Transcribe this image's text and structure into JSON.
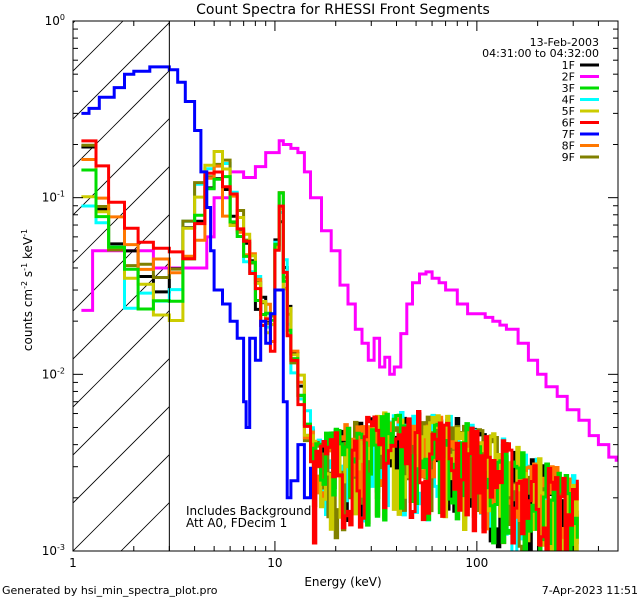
{
  "chart_data": {
    "type": "line",
    "title": "Count Spectra for RHESSI Front Segments",
    "xlabel": "Energy (keV)",
    "ylabel_parts": {
      "base": "counts cm",
      "exp1": "-2",
      "mid1": " s",
      "exp2": "-1",
      "mid2": " keV",
      "exp3": "-1"
    },
    "x_scale": "log",
    "y_scale": "log",
    "xlim": [
      1,
      500
    ],
    "ylim": [
      0.001,
      1
    ],
    "x_ticks": [
      {
        "value": 1,
        "label": "1"
      },
      {
        "value": 10,
        "label": "10"
      },
      {
        "value": 100,
        "label": "100"
      }
    ],
    "y_ticks": [
      {
        "value": 0.001,
        "base": "10",
        "exp": "-3"
      },
      {
        "value": 0.01,
        "base": "10",
        "exp": "-2"
      },
      {
        "value": 0.1,
        "base": "10",
        "exp": "-1"
      },
      {
        "value": 1,
        "base": "10",
        "exp": "0"
      }
    ],
    "date_label": "13-Feb-2003",
    "time_label": "04:31:00 to 04:32:00",
    "annotations": [
      "Includes Background",
      "Att A0, FDecim 1"
    ],
    "shaded_region": {
      "x_start": 1,
      "x_end": 3
    },
    "legend_position": "top-right",
    "series": [
      {
        "name": "1F",
        "color": "#000000"
      },
      {
        "name": "2F",
        "color": "#ff00ff"
      },
      {
        "name": "3F",
        "color": "#00dd00"
      },
      {
        "name": "4F",
        "color": "#00ffff"
      },
      {
        "name": "5F",
        "color": "#cccc00"
      },
      {
        "name": "6F",
        "color": "#ff0000"
      },
      {
        "name": "7F",
        "color": "#0000ff"
      },
      {
        "name": "8F",
        "color": "#ff7700"
      },
      {
        "name": "9F",
        "color": "#808000"
      }
    ],
    "series_2F_points": [
      [
        1.1,
        0.023
      ],
      [
        1.2,
        0.023
      ],
      [
        1.25,
        0.05
      ],
      [
        2.4,
        0.05
      ],
      [
        2.5,
        0.04
      ],
      [
        3,
        0.04
      ],
      [
        4,
        0.04
      ],
      [
        4.6,
        0.06
      ],
      [
        5,
        0.1
      ],
      [
        6,
        0.14
      ],
      [
        7,
        0.13
      ],
      [
        8,
        0.15
      ],
      [
        9,
        0.18
      ],
      [
        10,
        0.18
      ],
      [
        10.5,
        0.21
      ],
      [
        11,
        0.2
      ],
      [
        12,
        0.19
      ],
      [
        13,
        0.18
      ],
      [
        14,
        0.14
      ],
      [
        15,
        0.1
      ],
      [
        17,
        0.065
      ],
      [
        19,
        0.05
      ],
      [
        21,
        0.032
      ],
      [
        23,
        0.025
      ],
      [
        25,
        0.018
      ],
      [
        27,
        0.015
      ],
      [
        29,
        0.012
      ],
      [
        31,
        0.016
      ],
      [
        33,
        0.011
      ],
      [
        35,
        0.0125
      ],
      [
        37,
        0.01
      ],
      [
        39,
        0.011
      ],
      [
        42,
        0.017
      ],
      [
        45,
        0.025
      ],
      [
        48,
        0.033
      ],
      [
        52,
        0.037
      ],
      [
        56,
        0.038
      ],
      [
        60,
        0.035
      ],
      [
        65,
        0.033
      ],
      [
        70,
        0.03
      ],
      [
        75,
        0.03
      ],
      [
        80,
        0.025
      ],
      [
        90,
        0.022
      ],
      [
        100,
        0.022
      ],
      [
        110,
        0.021
      ],
      [
        120,
        0.02
      ],
      [
        130,
        0.019
      ],
      [
        140,
        0.018
      ],
      [
        160,
        0.015
      ],
      [
        180,
        0.012
      ],
      [
        200,
        0.01
      ],
      [
        220,
        0.0085
      ],
      [
        250,
        0.0075
      ],
      [
        280,
        0.0063
      ],
      [
        320,
        0.0055
      ],
      [
        360,
        0.0045
      ],
      [
        400,
        0.004
      ],
      [
        450,
        0.0034
      ],
      [
        490,
        0.0032
      ]
    ],
    "series_7F_points": [
      [
        1.1,
        0.3
      ],
      [
        1.2,
        0.32
      ],
      [
        1.35,
        0.37
      ],
      [
        1.6,
        0.42
      ],
      [
        1.8,
        0.5
      ],
      [
        2,
        0.52
      ],
      [
        2.4,
        0.55
      ],
      [
        2.6,
        0.55
      ],
      [
        2.9,
        0.55
      ],
      [
        3,
        0.53
      ],
      [
        3.3,
        0.45
      ],
      [
        3.6,
        0.35
      ],
      [
        4,
        0.24
      ],
      [
        4.3,
        0.14
      ],
      [
        4.6,
        0.088
      ],
      [
        4.8,
        0.05
      ],
      [
        5,
        0.03
      ],
      [
        5.5,
        0.025
      ],
      [
        6,
        0.02
      ],
      [
        6.5,
        0.016
      ],
      [
        7,
        0.007
      ],
      [
        7.2,
        0.005
      ],
      [
        7.5,
        0.016
      ],
      [
        8,
        0.012
      ],
      [
        8.5,
        0.02
      ],
      [
        9,
        0.015
      ],
      [
        9.5,
        0.022
      ],
      [
        10,
        0.03
      ],
      [
        10.5,
        0.03
      ],
      [
        11,
        0.007
      ],
      [
        11.5,
        0.002
      ],
      [
        12,
        0.0025
      ],
      [
        13,
        0.004
      ],
      [
        14,
        0.002
      ],
      [
        15,
        0.003
      ]
    ],
    "series_low_start": {
      "1F": 0.16,
      "3F": 0.12,
      "4F": 0.11,
      "5F": 0.12,
      "6F": 0.22,
      "8F": 0.21,
      "9F": 0.16
    }
  },
  "footer": {
    "left": "Generated by hsi_min_spectra_plot.pro",
    "right": "7-Apr-2023 11:51"
  }
}
